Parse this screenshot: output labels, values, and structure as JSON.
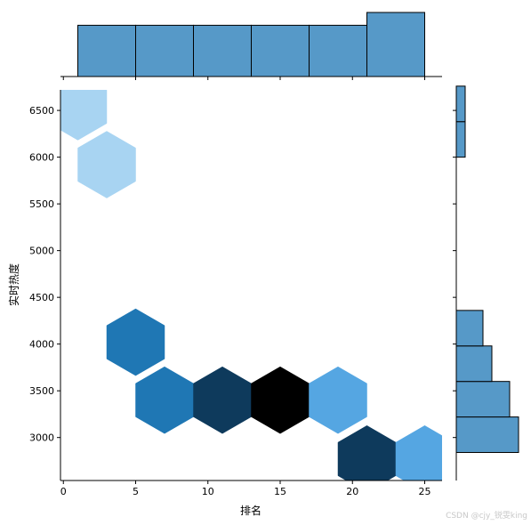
{
  "chart_data": {
    "type": "hexbin-joint",
    "xlabel": "排名",
    "ylabel": "实时热度",
    "xlim": [
      -0.2,
      26.2
    ],
    "ylim": [
      2540,
      6720
    ],
    "xticks": [
      0,
      5,
      10,
      15,
      20,
      25
    ],
    "yticks": [
      3000,
      3500,
      4000,
      4500,
      5000,
      5500,
      6000,
      6500
    ],
    "hex_radius_x": 2.0,
    "hexbins": [
      {
        "x": 1,
        "y": 6540,
        "count": 1,
        "color": "#a8d4f2"
      },
      {
        "x": 3,
        "y": 5920,
        "count": 1,
        "color": "#a8d4f2"
      },
      {
        "x": 5,
        "y": 4020,
        "count": 2,
        "color": "#1f77b4"
      },
      {
        "x": 7,
        "y": 3400,
        "count": 2,
        "color": "#1f77b4"
      },
      {
        "x": 11,
        "y": 3400,
        "count": 3,
        "color": "#0e3a5c"
      },
      {
        "x": 15,
        "y": 3400,
        "count": 4,
        "color": "#000000"
      },
      {
        "x": 19,
        "y": 3400,
        "count": 1,
        "color": "#55a6e2"
      },
      {
        "x": 21,
        "y": 2770,
        "count": 3,
        "color": "#0e3a5c"
      },
      {
        "x": 25,
        "y": 2770,
        "count": 1,
        "color": "#55a6e2"
      }
    ],
    "marginal_x": {
      "bin_edges": [
        1,
        5,
        9,
        13,
        17,
        21,
        25
      ],
      "counts": [
        4,
        4,
        4,
        4,
        4,
        5
      ],
      "max_count": 5
    },
    "marginal_y": {
      "bins": [
        [
          2840,
          3220,
          7
        ],
        [
          3220,
          3600,
          6
        ],
        [
          3600,
          3980,
          4
        ],
        [
          3980,
          4360,
          3
        ],
        [
          6000,
          6380,
          1
        ],
        [
          6380,
          6760,
          1
        ]
      ],
      "max_count": 7
    },
    "bar_color": "#5699c8",
    "watermark": "CSDN @cjy_锐雯king"
  }
}
